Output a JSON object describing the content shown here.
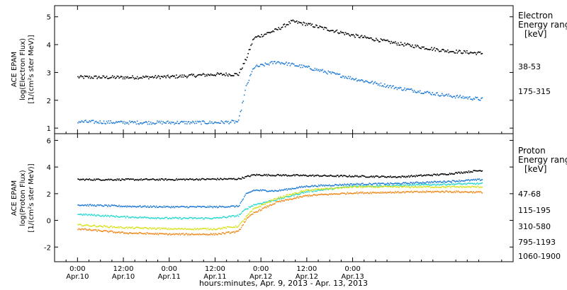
{
  "chart_data": [
    {
      "type": "scatter",
      "panel": "electron",
      "ylabel_lines": [
        "ACE EPAM",
        "log(Electron Flux)",
        "[1/(cm²s ster MeV)]"
      ],
      "ylim": [
        0.8,
        5.4
      ],
      "yticks": [
        1,
        2,
        3,
        4,
        5
      ],
      "legend_title": [
        "Electron",
        "Energy ranges",
        "[keV]"
      ],
      "series": [
        {
          "name": "38-53",
          "color": "#000000",
          "points": [
            [
              0,
              2.85
            ],
            [
              12,
              2.84
            ],
            [
              24,
              2.86
            ],
            [
              36,
              2.95
            ],
            [
              42,
              2.95
            ],
            [
              44,
              3.5
            ],
            [
              46,
              4.25
            ],
            [
              52,
              4.55
            ],
            [
              56,
              4.85
            ],
            [
              60,
              4.75
            ],
            [
              72,
              4.35
            ],
            [
              84,
              4.05
            ],
            [
              96,
              3.8
            ],
            [
              106,
              3.7
            ]
          ]
        },
        {
          "name": "175-315",
          "color": "#1f7ad6",
          "points": [
            [
              0,
              1.25
            ],
            [
              12,
              1.22
            ],
            [
              24,
              1.22
            ],
            [
              36,
              1.22
            ],
            [
              42,
              1.25
            ],
            [
              44,
              2.5
            ],
            [
              46,
              3.2
            ],
            [
              52,
              3.4
            ],
            [
              60,
              3.2
            ],
            [
              72,
              2.8
            ],
            [
              84,
              2.45
            ],
            [
              96,
              2.2
            ],
            [
              106,
              2.05
            ]
          ]
        }
      ]
    },
    {
      "type": "scatter",
      "panel": "proton",
      "ylabel_lines": [
        "ACE EPAM",
        "log(Proton Flux)",
        "[1/(cm²s ster MeV)]"
      ],
      "ylim": [
        -3.1,
        6.5
      ],
      "yticks": [
        -2,
        0,
        2,
        4,
        6
      ],
      "legend_title": [
        "Proton",
        "Energy ranges",
        "[keV]"
      ],
      "series": [
        {
          "name": "47-68",
          "color": "#000000",
          "points": [
            [
              0,
              3.1
            ],
            [
              24,
              3.1
            ],
            [
              42,
              3.15
            ],
            [
              46,
              3.45
            ],
            [
              60,
              3.4
            ],
            [
              72,
              3.35
            ],
            [
              84,
              3.3
            ],
            [
              96,
              3.5
            ],
            [
              106,
              3.8
            ]
          ]
        },
        {
          "name": "115-195",
          "color": "#1f7ad6",
          "points": [
            [
              0,
              1.2
            ],
            [
              12,
              1.1
            ],
            [
              24,
              1.05
            ],
            [
              36,
              1.05
            ],
            [
              42,
              1.1
            ],
            [
              44,
              2.0
            ],
            [
              46,
              2.3
            ],
            [
              52,
              2.25
            ],
            [
              60,
              2.6
            ],
            [
              72,
              2.75
            ],
            [
              84,
              2.8
            ],
            [
              96,
              2.95
            ],
            [
              106,
              3.1
            ]
          ]
        },
        {
          "name": "310-580",
          "color": "#29d8cf",
          "points": [
            [
              0,
              0.5
            ],
            [
              12,
              0.3
            ],
            [
              24,
              0.2
            ],
            [
              36,
              0.2
            ],
            [
              42,
              0.4
            ],
            [
              44,
              0.9
            ],
            [
              46,
              1.2
            ],
            [
              52,
              1.6
            ],
            [
              60,
              2.2
            ],
            [
              72,
              2.6
            ],
            [
              84,
              2.65
            ],
            [
              96,
              2.75
            ],
            [
              106,
              2.8
            ]
          ]
        },
        {
          "name": "795-1193",
          "color": "#d8e020",
          "points": [
            [
              0,
              -0.3
            ],
            [
              12,
              -0.5
            ],
            [
              24,
              -0.6
            ],
            [
              36,
              -0.6
            ],
            [
              42,
              -0.4
            ],
            [
              44,
              0.3
            ],
            [
              46,
              0.9
            ],
            [
              52,
              1.7
            ],
            [
              60,
              2.3
            ],
            [
              72,
              2.55
            ],
            [
              84,
              2.55
            ],
            [
              96,
              2.55
            ],
            [
              106,
              2.55
            ]
          ]
        },
        {
          "name": "1060-1900",
          "color": "#f08a1c",
          "points": [
            [
              0,
              -0.6
            ],
            [
              12,
              -0.9
            ],
            [
              24,
              -1.0
            ],
            [
              36,
              -1.0
            ],
            [
              42,
              -0.8
            ],
            [
              44,
              0.1
            ],
            [
              46,
              0.6
            ],
            [
              52,
              1.4
            ],
            [
              60,
              1.9
            ],
            [
              72,
              2.1
            ],
            [
              84,
              2.15
            ],
            [
              96,
              2.2
            ],
            [
              106,
              2.15
            ]
          ]
        }
      ]
    }
  ],
  "x_axis": {
    "xlim": [
      -6,
      114
    ],
    "ticks": [
      {
        "x": 0,
        "time": "0:00",
        "date": "Apr.10"
      },
      {
        "x": 12,
        "time": "12:00",
        "date": "Apr.10"
      },
      {
        "x": 24,
        "time": "0:00",
        "date": "Apr.11"
      },
      {
        "x": 36,
        "time": "12:00",
        "date": "Apr.11"
      },
      {
        "x": 48,
        "time": "0:00",
        "date": "Apr.12"
      },
      {
        "x": 60,
        "time": "12:00",
        "date": "Apr.12"
      },
      {
        "x": 72,
        "time": "0:00",
        "date": "Apr.13"
      }
    ],
    "label": "hours:minutes, Apr.  9, 2013 - Apr. 13, 2013"
  }
}
